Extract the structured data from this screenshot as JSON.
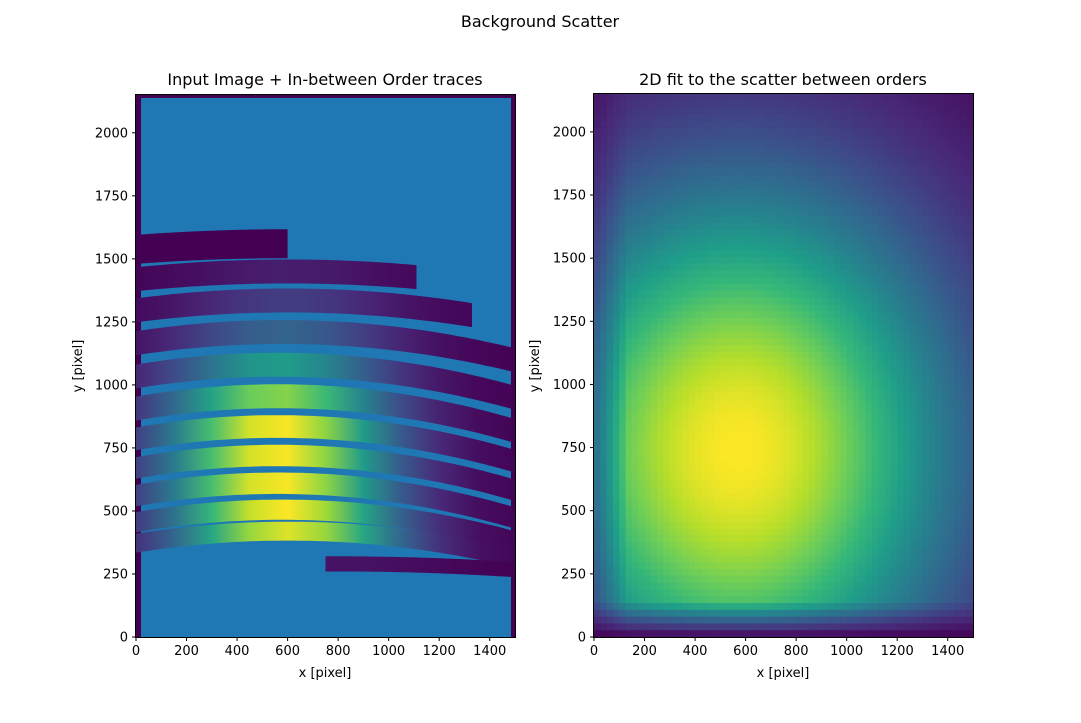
{
  "figure": {
    "suptitle": "Background Scatter"
  },
  "chart_data": [
    {
      "type": "heatmap",
      "title": "Input Image + In-between Order traces",
      "xlabel": "x [pixel]",
      "ylabel": "y [pixel]",
      "xlim": [
        0,
        1500
      ],
      "ylim": [
        0,
        2150
      ],
      "xticks": [
        0,
        200,
        400,
        600,
        800,
        1000,
        1200,
        1400
      ],
      "yticks": [
        0,
        250,
        500,
        750,
        1000,
        1250,
        1500,
        1750,
        2000
      ],
      "colormap": "viridis",
      "overlay_color": "#1f77b4",
      "border_color": "#440154",
      "traces": [
        {
          "x": [
            0,
            600
          ],
          "ymid": 1560,
          "curv": 40,
          "w": 115,
          "peak": 0.0,
          "cx": 600
        },
        {
          "x": [
            0,
            1110
          ],
          "ymid": 1450,
          "curv": 55,
          "w": 95,
          "peak": 0.08,
          "cx": 600
        },
        {
          "x": [
            0,
            1330
          ],
          "ymid": 1335,
          "curv": 70,
          "w": 95,
          "peak": 0.18,
          "cx": 600
        },
        {
          "x": [
            0,
            1500
          ],
          "ymid": 1210,
          "curv": 85,
          "w": 95,
          "peak": 0.32,
          "cx": 580
        },
        {
          "x": [
            0,
            1500
          ],
          "ymid": 1080,
          "curv": 95,
          "w": 95,
          "peak": 0.55,
          "cx": 560
        },
        {
          "x": [
            0,
            1500
          ],
          "ymid": 955,
          "curv": 100,
          "w": 95,
          "peak": 0.82,
          "cx": 560
        },
        {
          "x": [
            0,
            1500
          ],
          "ymid": 835,
          "curv": 100,
          "w": 90,
          "peak": 1.0,
          "cx": 560
        },
        {
          "x": [
            0,
            1500
          ],
          "ymid": 720,
          "curv": 100,
          "w": 85,
          "peak": 1.0,
          "cx": 560
        },
        {
          "x": [
            0,
            1500
          ],
          "ymid": 610,
          "curv": 100,
          "w": 85,
          "peak": 1.0,
          "cx": 560
        },
        {
          "x": [
            0,
            1500
          ],
          "ymid": 505,
          "curv": 95,
          "w": 80,
          "peak": 1.0,
          "cx": 580
        },
        {
          "x": [
            0,
            1500
          ],
          "ymid": 420,
          "curv": 85,
          "w": 75,
          "peak": 0.95,
          "cx": 600
        },
        {
          "x": [
            750,
            1500
          ],
          "ymid": 290,
          "curv": 30,
          "w": 60,
          "peak": 0.05,
          "cx": 800
        }
      ]
    },
    {
      "type": "heatmap",
      "title": "2D fit to the scatter between orders",
      "xlabel": "x [pixel]",
      "ylabel": "y [pixel]",
      "xlim": [
        0,
        1500
      ],
      "ylim": [
        0,
        2150
      ],
      "xticks": [
        0,
        200,
        400,
        600,
        800,
        1000,
        1200,
        1400
      ],
      "yticks": [
        0,
        250,
        500,
        750,
        1000,
        1250,
        1500,
        1750,
        2000
      ],
      "colormap": "viridis",
      "peak_center": [
        570,
        740
      ],
      "spread": [
        900,
        1100
      ]
    }
  ]
}
